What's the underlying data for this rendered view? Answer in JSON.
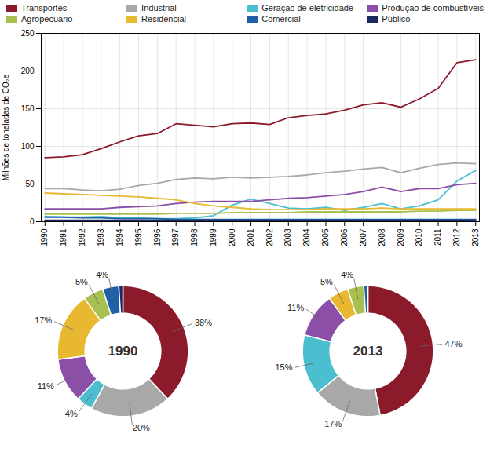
{
  "chart_data": [
    {
      "type": "line",
      "x": [
        1990,
        1991,
        1992,
        1993,
        1994,
        1995,
        1996,
        1997,
        1998,
        1999,
        2000,
        2001,
        2002,
        2003,
        2004,
        2005,
        2006,
        2007,
        2008,
        2009,
        2010,
        2011,
        2012,
        2013
      ],
      "series": [
        {
          "name": "Transportes",
          "color": "#8b1a2b",
          "values": [
            85,
            86,
            89,
            97,
            106,
            114,
            117,
            130,
            128,
            126,
            130,
            131,
            129,
            138,
            141,
            143,
            148,
            155,
            158,
            152,
            163,
            177,
            211,
            215
          ]
        },
        {
          "name": "Industrial",
          "color": "#a8a8a8",
          "values": [
            44,
            44,
            42,
            41,
            43,
            48,
            51,
            56,
            58,
            57,
            59,
            58,
            59,
            60,
            62,
            65,
            67,
            70,
            72,
            65,
            71,
            76,
            78,
            77
          ]
        },
        {
          "name": "Geração de eletricidade",
          "color": "#4bbfcf",
          "values": [
            7,
            6,
            6,
            7,
            5,
            5,
            4,
            4,
            5,
            8,
            22,
            30,
            24,
            18,
            17,
            19,
            15,
            19,
            24,
            17,
            21,
            29,
            54,
            68
          ]
        },
        {
          "name": "Produção de combustíveis",
          "color": "#8b4fa8",
          "values": [
            17,
            17,
            17,
            17,
            19,
            20,
            21,
            24,
            26,
            27,
            27,
            27,
            29,
            31,
            32,
            34,
            36,
            40,
            46,
            40,
            44,
            44,
            49,
            51
          ]
        },
        {
          "name": "Agropecuário",
          "color": "#a8c050",
          "values": [
            10,
            10,
            10,
            10,
            10,
            10,
            10,
            11,
            11,
            11,
            12,
            12,
            12,
            12,
            13,
            13,
            13,
            13,
            13,
            13,
            14,
            14,
            15,
            15
          ]
        },
        {
          "name": "Residencial",
          "color": "#e8b830",
          "values": [
            38,
            37,
            36,
            35,
            34,
            33,
            31,
            29,
            24,
            21,
            19,
            17,
            16,
            16,
            16,
            17,
            17,
            17,
            18,
            17,
            17,
            17,
            17,
            17
          ]
        },
        {
          "name": "Comercial",
          "color": "#2060a8",
          "values": [
            6,
            6,
            5,
            5,
            4,
            4,
            4,
            3,
            3,
            3,
            3,
            3,
            3,
            3,
            3,
            3,
            3,
            3,
            3,
            3,
            3,
            3,
            3,
            3
          ]
        },
        {
          "name": "Público",
          "color": "#1a2860",
          "values": [
            2,
            2,
            2,
            2,
            2,
            2,
            2,
            2,
            2,
            2,
            2,
            2,
            2,
            2,
            2,
            2,
            2,
            2,
            2,
            2,
            2,
            2,
            2,
            2
          ]
        }
      ],
      "ylabel": "Milhões de toneladas de CO₂e",
      "xlim": [
        1989.8,
        2013.2
      ],
      "xticks": [
        1990,
        1991,
        1992,
        1993,
        1994,
        1995,
        1996,
        1997,
        1998,
        1999,
        2000,
        2001,
        2002,
        2003,
        2004,
        2005,
        2006,
        2007,
        2008,
        2009,
        2010,
        2011,
        2012,
        2013
      ],
      "ylim": [
        0,
        250
      ],
      "yticks": [
        0,
        50,
        100,
        150,
        200,
        250
      ],
      "grid": true,
      "legend": "top"
    },
    {
      "type": "pie",
      "title": "1990",
      "values": [
        38,
        20,
        4,
        11,
        17,
        5,
        4,
        1
      ],
      "value_labels": [
        "38%",
        "20%",
        "4%",
        "11%",
        "17%",
        "5%",
        "4%",
        null
      ],
      "colors": [
        "#8b1a2b",
        "#a8a8a8",
        "#4bbfcf",
        "#8b4fa8",
        "#e8b830",
        "#a8c050",
        "#2060a8",
        "#1a2860"
      ]
    },
    {
      "type": "pie",
      "title": "2013",
      "values": [
        47,
        17,
        15,
        11,
        5,
        4,
        1
      ],
      "value_labels": [
        "47%",
        "17%",
        "15%",
        "11%",
        "5%",
        "4%",
        null
      ],
      "colors": [
        "#8b1a2b",
        "#a8a8a8",
        "#4bbfcf",
        "#8b4fa8",
        "#e8b830",
        "#a8c050",
        "#2060a8"
      ]
    }
  ]
}
